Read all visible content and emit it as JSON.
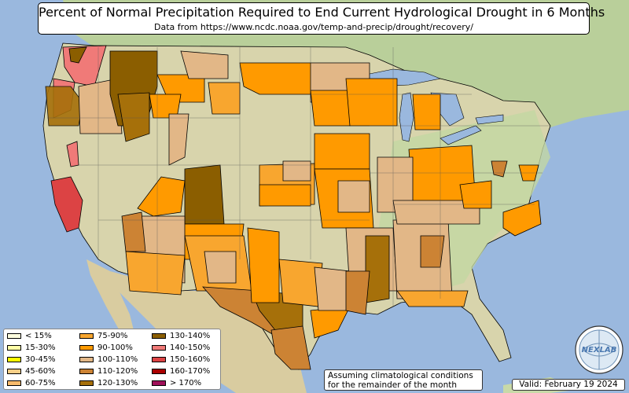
{
  "title": "Percent of Normal Precipitation Required to End Current Hydrological Drought in 6 Months",
  "subtitle": "Data from https://www.ncdc.noaa.gov/temp-and-precip/drought/recovery/",
  "legend": [
    {
      "label": "< 15%",
      "color": "#ffffe0"
    },
    {
      "label": "15-30%",
      "color": "#ffffa8"
    },
    {
      "label": "30-45%",
      "color": "#ffff00"
    },
    {
      "label": "45-60%",
      "color": "#f8cf88"
    },
    {
      "label": "60-75%",
      "color": "#f9bb6c"
    },
    {
      "label": "75-90%",
      "color": "#f8a62f"
    },
    {
      "label": "90-100%",
      "color": "#ff9a00"
    },
    {
      "label": "100-110%",
      "color": "#e2b787"
    },
    {
      "label": "110-120%",
      "color": "#cc8334"
    },
    {
      "label": "120-130%",
      "color": "#a6700a"
    },
    {
      "label": "130-140%",
      "color": "#8b5e00"
    },
    {
      "label": "140-150%",
      "color": "#f07a78"
    },
    {
      "label": "150-160%",
      "color": "#dc4344"
    },
    {
      "label": "160-170%",
      "color": "#aa0000"
    },
    {
      "label": "> 170%",
      "color": "#a0115a"
    }
  ],
  "note": {
    "line1": "Assuming climatological conditions",
    "line2": "for the remainder of the month"
  },
  "valid": "Valid: February 19 2024",
  "logo": {
    "text": "NEXLAB"
  },
  "colors": {
    "ocean": "#9ab8de",
    "land_green": "#c8d9a8",
    "land_tan": "#dfd6ad",
    "canada": "#b9cf9a",
    "mexico": "#d9cca0"
  }
}
